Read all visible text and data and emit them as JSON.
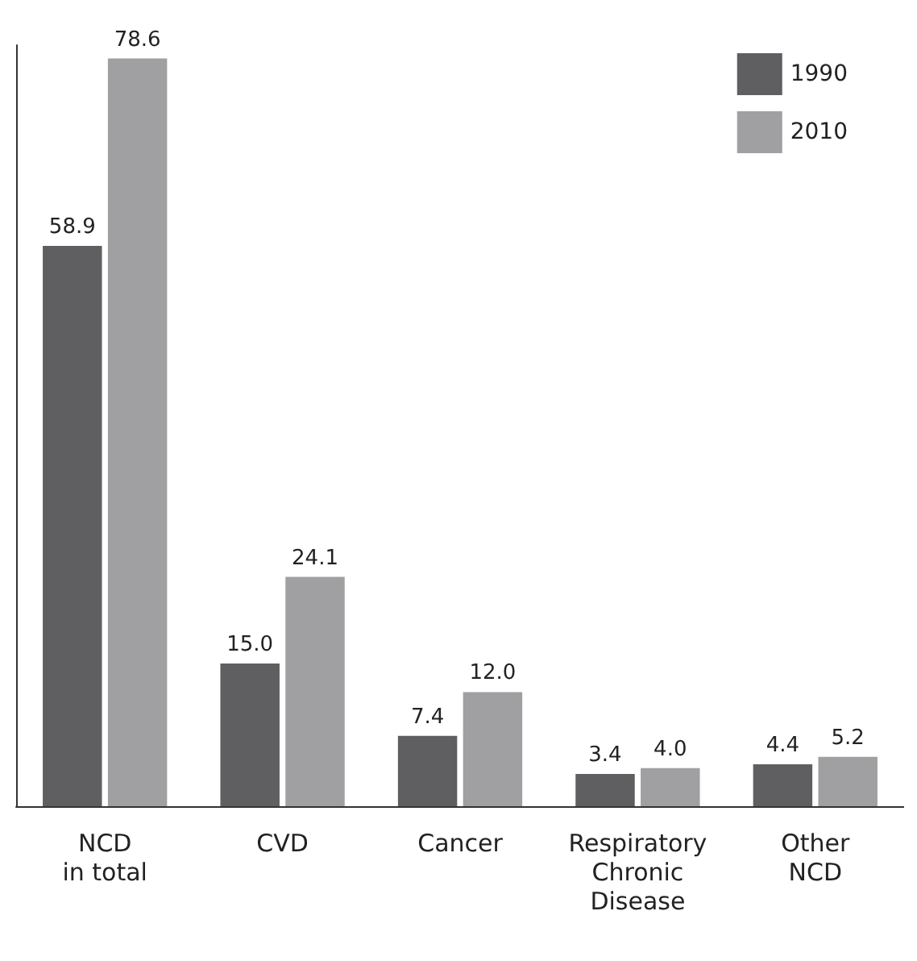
{
  "chart_data": {
    "type": "bar",
    "categories": [
      "NCD\nin total",
      "CVD",
      "Cancer",
      "Respiratory\nChronic\nDisease",
      "Other\nNCD"
    ],
    "series": [
      {
        "name": "1990",
        "color": "#5f5f61",
        "values": [
          58.9,
          15.0,
          7.4,
          3.4,
          4.4
        ],
        "value_labels": [
          "58.9",
          "15.0",
          "7.4",
          "3.4",
          "4.4"
        ]
      },
      {
        "name": "2010",
        "color": "#a0a0a2",
        "values": [
          78.6,
          24.1,
          12.0,
          4.0,
          5.2
        ],
        "value_labels": [
          "78.6",
          "24.1",
          "12.0",
          "4.0",
          "5.2"
        ]
      }
    ],
    "legend": "top right",
    "grid": false
  }
}
